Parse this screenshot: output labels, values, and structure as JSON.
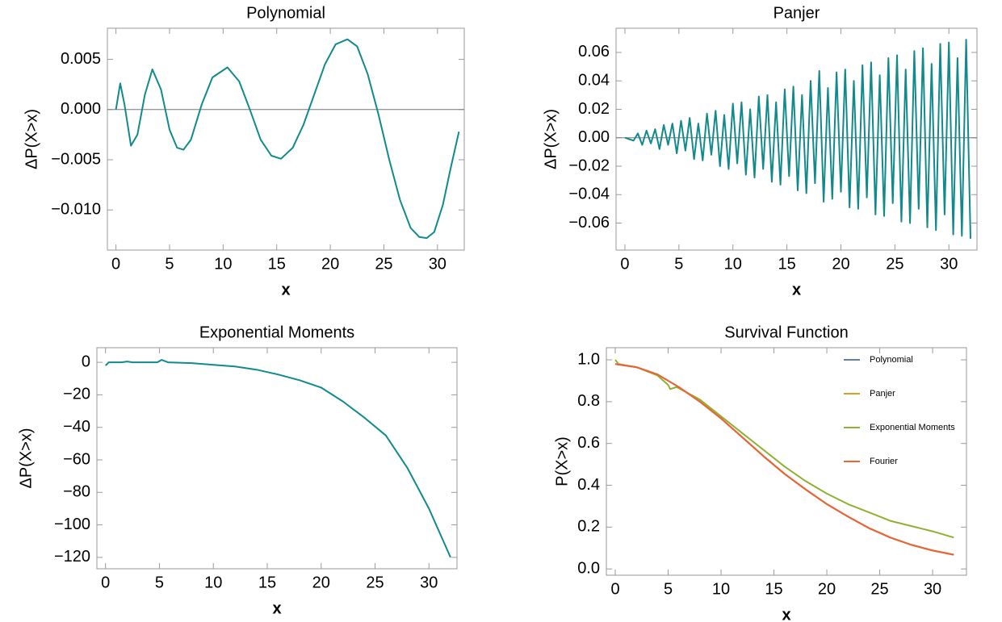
{
  "chart_data": [
    {
      "type": "line",
      "title": "Polynomial",
      "xlabel": "x",
      "ylabel": "ΔP(X>x)",
      "color": "#128a8c",
      "axes_origin": true,
      "x": [
        0,
        0.4,
        0.8,
        1.4,
        2,
        2.7,
        3.4,
        4.2,
        5,
        5.7,
        6.3,
        7,
        8,
        9,
        10.4,
        11.5,
        12.5,
        13.5,
        14.5,
        15.4,
        16.5,
        17.5,
        18.5,
        19.5,
        20.5,
        21.6,
        22.5,
        23.5,
        24.5,
        25.5,
        26.5,
        27.5,
        28.3,
        29,
        29.7,
        30.5,
        31.2,
        32
      ],
      "values": [
        0,
        0.0026,
        0.0005,
        -0.0036,
        -0.0025,
        0.0015,
        0.004,
        0.002,
        -0.002,
        -0.0038,
        -0.004,
        -0.003,
        0.0005,
        0.0032,
        0.0042,
        0.0028,
        0,
        -0.003,
        -0.0046,
        -0.0049,
        -0.0038,
        -0.0015,
        0.0015,
        0.0045,
        0.0065,
        0.007,
        0.0063,
        0.0035,
        -0.0005,
        -0.005,
        -0.009,
        -0.0118,
        -0.0127,
        -0.0128,
        -0.0122,
        -0.0095,
        -0.006,
        -0.0022
      ],
      "xlim": [
        -0.8,
        32.5
      ],
      "ylim": [
        -0.014,
        0.0081
      ],
      "xticks": [
        0,
        5,
        10,
        15,
        20,
        25,
        30
      ],
      "yticks": [
        {
          "value": -0.01,
          "label": "−0.010"
        },
        {
          "value": -0.005,
          "label": "−0.005"
        },
        {
          "value": 0,
          "label": "0.000"
        },
        0.005
      ]
    },
    {
      "type": "line",
      "title": "Panjer",
      "xlabel": "x",
      "ylabel": "ΔP(X>x)",
      "color": "#128a8c",
      "axes_origin": true,
      "x": [
        0,
        0.4,
        0.8,
        1.2,
        1.6,
        2,
        2.4,
        2.8,
        3.2,
        3.6,
        4,
        4.4,
        4.8,
        5.2,
        5.6,
        6,
        6.4,
        6.8,
        7.2,
        7.6,
        8,
        8.4,
        8.8,
        9.2,
        9.6,
        10,
        10.4,
        10.8,
        11.2,
        11.6,
        12,
        12.4,
        12.8,
        13.2,
        13.6,
        14,
        14.4,
        14.8,
        15.2,
        15.6,
        16,
        16.4,
        16.8,
        17.2,
        17.6,
        18,
        18.4,
        18.8,
        19.2,
        19.6,
        20,
        20.4,
        20.8,
        21.2,
        21.6,
        22,
        22.4,
        22.8,
        23.2,
        23.6,
        24,
        24.4,
        24.8,
        25.2,
        25.6,
        26,
        26.4,
        26.8,
        27.2,
        27.6,
        28,
        28.4,
        28.8,
        29.2,
        29.6,
        30,
        30.4,
        30.8,
        31.2,
        31.6,
        32
      ],
      "values": [
        0,
        -0.001,
        -0.002,
        0.003,
        -0.005,
        0.005,
        -0.004,
        0.006,
        -0.008,
        0.009,
        -0.005,
        0.01,
        -0.011,
        0.012,
        -0.009,
        0.014,
        -0.015,
        0.01,
        -0.016,
        0.017,
        -0.012,
        0.019,
        -0.02,
        0.016,
        -0.022,
        0.024,
        -0.018,
        0.025,
        -0.026,
        0.02,
        -0.028,
        0.029,
        -0.022,
        0.03,
        -0.031,
        0.025,
        -0.033,
        0.034,
        -0.027,
        0.036,
        -0.037,
        0.03,
        -0.039,
        0.04,
        -0.032,
        0.047,
        -0.045,
        0.035,
        -0.043,
        0.046,
        -0.038,
        0.048,
        -0.049,
        0.04,
        -0.05,
        0.051,
        -0.042,
        0.053,
        -0.054,
        0.044,
        -0.055,
        0.056,
        -0.046,
        0.058,
        -0.059,
        0.048,
        -0.06,
        0.061,
        -0.05,
        0.063,
        -0.063,
        0.052,
        -0.065,
        0.066,
        -0.054,
        0.067,
        -0.068,
        0.056,
        -0.069,
        0.069,
        -0.071
      ],
      "xlim": [
        -0.82,
        32.6
      ],
      "ylim": [
        -0.079,
        0.077
      ],
      "xticks": [
        0,
        5,
        10,
        15,
        20,
        25,
        30
      ],
      "yticks": [
        {
          "value": -0.06,
          "label": "−0.06"
        },
        {
          "value": -0.04,
          "label": "−0.04"
        },
        {
          "value": -0.02,
          "label": "−0.02"
        },
        {
          "value": 0,
          "label": "0.00"
        },
        0.02,
        0.04,
        0.06
      ]
    },
    {
      "type": "line",
      "title": "Exponential Moments",
      "xlabel": "x",
      "ylabel": "ΔP(X>x)",
      "color": "#128a8c",
      "x": [
        0,
        0.3,
        1.5,
        2,
        2.5,
        4.8,
        5.2,
        5.8,
        8,
        10,
        12,
        14,
        16,
        18,
        20,
        22,
        24,
        26,
        28,
        30,
        32
      ],
      "values": [
        -2,
        0,
        0,
        0.5,
        0,
        0,
        1.5,
        0,
        -0.5,
        -1.5,
        -2.5,
        -4.5,
        -7.5,
        -11,
        -15.5,
        -24,
        -34,
        -45,
        -65,
        -90,
        -120
      ],
      "xlim": [
        -0.8,
        32.6
      ],
      "ylim": [
        -127,
        9
      ],
      "xticks": [
        0,
        5,
        10,
        15,
        20,
        25,
        30
      ],
      "yticks": [
        {
          "value": -120,
          "label": "−120"
        },
        {
          "value": -100,
          "label": "−100"
        },
        {
          "value": -80,
          "label": "−80"
        },
        {
          "value": -60,
          "label": "−60"
        },
        {
          "value": -40,
          "label": "−40"
        },
        {
          "value": -20,
          "label": "−20"
        },
        0
      ]
    },
    {
      "type": "line",
      "title": "Survival Function",
      "xlabel": "x",
      "ylabel": "P(X>x)",
      "legend": "top-right",
      "series": [
        {
          "name": "Polynomial",
          "color": "#5e81b5",
          "x": [
            0,
            2,
            4,
            6,
            8,
            10,
            12,
            14,
            16,
            18,
            20,
            22,
            24,
            26,
            28,
            30,
            32
          ],
          "values": [
            0.98,
            0.965,
            0.93,
            0.87,
            0.8,
            0.72,
            0.63,
            0.54,
            0.455,
            0.38,
            0.31,
            0.25,
            0.195,
            0.15,
            0.115,
            0.088,
            0.068
          ]
        },
        {
          "name": "Panjer",
          "color": "#e19c24",
          "x": [
            0,
            2,
            4,
            6,
            8,
            10,
            12,
            14,
            16,
            18,
            20,
            22,
            24,
            26,
            28,
            30,
            32
          ],
          "values": [
            0.98,
            0.965,
            0.93,
            0.87,
            0.8,
            0.72,
            0.63,
            0.54,
            0.455,
            0.38,
            0.31,
            0.25,
            0.195,
            0.15,
            0.115,
            0.088,
            0.068
          ]
        },
        {
          "name": "Exponential Moments",
          "color": "#8fb032",
          "x": [
            0,
            0.3,
            2,
            4,
            5,
            5.2,
            5.8,
            8,
            10,
            12,
            14,
            16,
            18,
            20,
            22,
            24,
            26,
            28,
            30,
            32
          ],
          "values": [
            1.0,
            0.98,
            0.965,
            0.925,
            0.88,
            0.86,
            0.87,
            0.81,
            0.73,
            0.65,
            0.57,
            0.49,
            0.42,
            0.36,
            0.31,
            0.27,
            0.23,
            0.205,
            0.18,
            0.15
          ]
        },
        {
          "name": "Fourier",
          "color": "#eb6235",
          "x": [
            0,
            2,
            4,
            6,
            8,
            10,
            12,
            14,
            16,
            18,
            20,
            22,
            24,
            26,
            28,
            30,
            32
          ],
          "values": [
            0.98,
            0.965,
            0.93,
            0.87,
            0.8,
            0.72,
            0.63,
            0.54,
            0.455,
            0.38,
            0.31,
            0.25,
            0.195,
            0.15,
            0.115,
            0.088,
            0.068
          ]
        }
      ],
      "xlim": [
        -0.84,
        33.2
      ],
      "ylim": [
        -0.03,
        1.058
      ],
      "xticks": [
        0,
        5,
        10,
        15,
        20,
        25,
        30
      ],
      "yticks": [
        {
          "value": 0,
          "label": "0.0"
        },
        0.2,
        0.4,
        0.6,
        0.8,
        {
          "value": 1,
          "label": "1.0"
        }
      ]
    }
  ]
}
